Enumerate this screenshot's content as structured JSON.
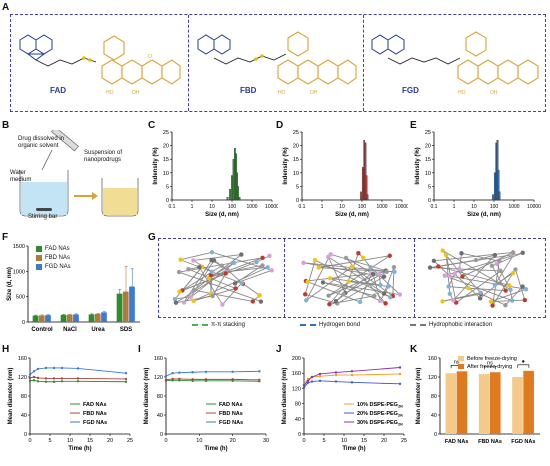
{
  "panels": [
    "A",
    "B",
    "C",
    "D",
    "E",
    "F",
    "G",
    "H",
    "I",
    "J",
    "K"
  ],
  "panelA": {
    "compounds": [
      "FAD",
      "FBD",
      "FGD"
    ]
  },
  "panelB": {
    "texts": [
      "Drug dissolved in organic solvent",
      "Water medium",
      "Suspension of nanoprodrugs",
      "Stirring bar"
    ]
  },
  "colors": {
    "fad": "#2e8b2e",
    "fbd": "#b0413e",
    "fgd": "#2f6fb6",
    "frame": "#3b3fbf",
    "ochre": "#d9a336",
    "peach": "#f4c98a",
    "orange": "#e07a1f",
    "peg10": "#f0a020",
    "peg20": "#3a5bd0",
    "peg30": "#8b2fb0"
  },
  "panelG": {
    "legend": [
      "π-π stacking",
      "Hydrogen bond",
      "Hydrophobic interaction"
    ]
  },
  "chart_data": [
    {
      "panel": "C",
      "type": "bar",
      "xlabel": "Size (d, nm)",
      "ylabel": "Indensity (%)",
      "x_scale": "log",
      "xticks": [
        "0.1",
        "1",
        "10",
        "100",
        "1000",
        "10000"
      ],
      "ylim": [
        0,
        25
      ],
      "yticks": [
        "0",
        "5",
        "10",
        "15",
        "20",
        "25"
      ],
      "bins": [
        60,
        80,
        100,
        120,
        140,
        160,
        180,
        200,
        240
      ],
      "values": [
        1,
        4,
        9,
        15,
        19,
        17,
        10,
        5,
        1
      ]
    },
    {
      "panel": "D",
      "type": "bar",
      "xlabel": "Size (d, nm)",
      "ylabel": "Indensity (%)",
      "x_scale": "log",
      "xticks": [
        "0.1",
        "1",
        "10",
        "100",
        "1000",
        "10000"
      ],
      "ylim": [
        0,
        25
      ],
      "yticks": [
        "0",
        "5",
        "10",
        "15",
        "20",
        "25"
      ],
      "bins": [
        90,
        110,
        130,
        150,
        170,
        190
      ],
      "values": [
        3,
        12,
        22,
        21,
        9,
        2
      ]
    },
    {
      "panel": "E",
      "type": "bar",
      "xlabel": "Size (d, nm)",
      "ylabel": "Indensity (%)",
      "x_scale": "log",
      "xticks": [
        "0.1",
        "1",
        "10",
        "100",
        "1000",
        "10000"
      ],
      "ylim": [
        0,
        25
      ],
      "yticks": [
        "0",
        "5",
        "10",
        "15",
        "20",
        "25"
      ],
      "bins": [
        90,
        110,
        130,
        150,
        170,
        190
      ],
      "values": [
        2,
        10,
        21,
        22,
        11,
        3
      ]
    },
    {
      "panel": "F",
      "type": "bar",
      "ylabel": "Size (d, nm)",
      "ylim": [
        0,
        1500
      ],
      "yticks": [
        "0",
        "500",
        "1000",
        "1500"
      ],
      "categories": [
        "Control",
        "NaCl",
        "Urea",
        "SDS"
      ],
      "series": [
        {
          "name": "FAD NAs",
          "values": [
            125,
            140,
            150,
            560
          ]
        },
        {
          "name": "FBD NAs",
          "values": [
            130,
            145,
            160,
            600
          ]
        },
        {
          "name": "FGD NAs",
          "values": [
            135,
            150,
            190,
            700
          ]
        }
      ],
      "errors": [
        [
          10,
          10,
          10,
          80
        ],
        [
          10,
          10,
          12,
          500
        ],
        [
          12,
          12,
          15,
          350
        ]
      ]
    },
    {
      "panel": "H",
      "type": "line",
      "xlabel": "Time (h)",
      "ylabel": "Mean diameter (nm)",
      "xlim": [
        0,
        25
      ],
      "xticks": [
        "0",
        "5",
        "10",
        "15",
        "20",
        "25"
      ],
      "ylim": [
        0,
        160
      ],
      "yticks": [
        "0",
        "40",
        "80",
        "120",
        "160"
      ],
      "x": [
        0,
        1,
        2,
        4,
        6,
        8,
        12,
        24
      ],
      "series": [
        {
          "name": "FAD NAs",
          "values": [
            112,
            113,
            111,
            110,
            110,
            111,
            111,
            110
          ]
        },
        {
          "name": "FBD NAs",
          "values": [
            118,
            120,
            118,
            117,
            117,
            117,
            117,
            116
          ]
        },
        {
          "name": "FGD NAs",
          "values": [
            125,
            132,
            137,
            139,
            139,
            139,
            138,
            128
          ]
        }
      ]
    },
    {
      "panel": "I",
      "type": "line",
      "xlabel": "Time (h)",
      "ylabel": "Mean diameter (nm)",
      "xlim": [
        0,
        30
      ],
      "xticks": [
        "0",
        "10",
        "20",
        "30"
      ],
      "ylim": [
        0,
        160
      ],
      "yticks": [
        "0",
        "40",
        "80",
        "120",
        "160"
      ],
      "x": [
        0,
        2,
        4,
        8,
        12,
        20,
        28
      ],
      "series": [
        {
          "name": "FAD NAs",
          "values": [
            112,
            113,
            113,
            112,
            112,
            112,
            111
          ]
        },
        {
          "name": "FBD NAs",
          "values": [
            114,
            116,
            116,
            115,
            115,
            115,
            114
          ]
        },
        {
          "name": "FGD NAs",
          "values": [
            122,
            128,
            129,
            130,
            131,
            131,
            132
          ]
        }
      ]
    },
    {
      "panel": "J",
      "type": "line",
      "xlabel": "Time (h)",
      "ylabel": "Mean diameter (nm)",
      "xlim": [
        0,
        25
      ],
      "xticks": [
        "0",
        "5",
        "10",
        "15",
        "20",
        "25"
      ],
      "ylim": [
        0,
        200
      ],
      "yticks": [
        "0",
        "40",
        "80",
        "120",
        "160",
        "200"
      ],
      "x": [
        0,
        1,
        2,
        4,
        8,
        12,
        24
      ],
      "series": [
        {
          "name": "10% DSPE-PEG",
          "values": [
            130,
            145,
            150,
            152,
            155,
            155,
            158
          ]
        },
        {
          "name": "20% DSPE-PEG",
          "values": [
            122,
            135,
            138,
            140,
            138,
            136,
            132
          ]
        },
        {
          "name": "30% DSPE-PEG",
          "values": [
            128,
            140,
            150,
            158,
            162,
            165,
            175
          ]
        }
      ],
      "series_subscript": "2K"
    },
    {
      "panel": "K",
      "type": "bar",
      "ylabel": "Mean diameter (nm)",
      "ylim": [
        0,
        160
      ],
      "yticks": [
        "0",
        "40",
        "80",
        "120",
        "160"
      ],
      "categories": [
        "FAD NAs",
        "FBD NAs",
        "FGD NAs"
      ],
      "series": [
        {
          "name": "Before freeze-drying",
          "values": [
            128,
            126,
            120
          ]
        },
        {
          "name": "After freeze-drying",
          "values": [
            132,
            130,
            133
          ]
        }
      ],
      "significance": [
        "ns",
        "ns",
        "●"
      ]
    }
  ]
}
